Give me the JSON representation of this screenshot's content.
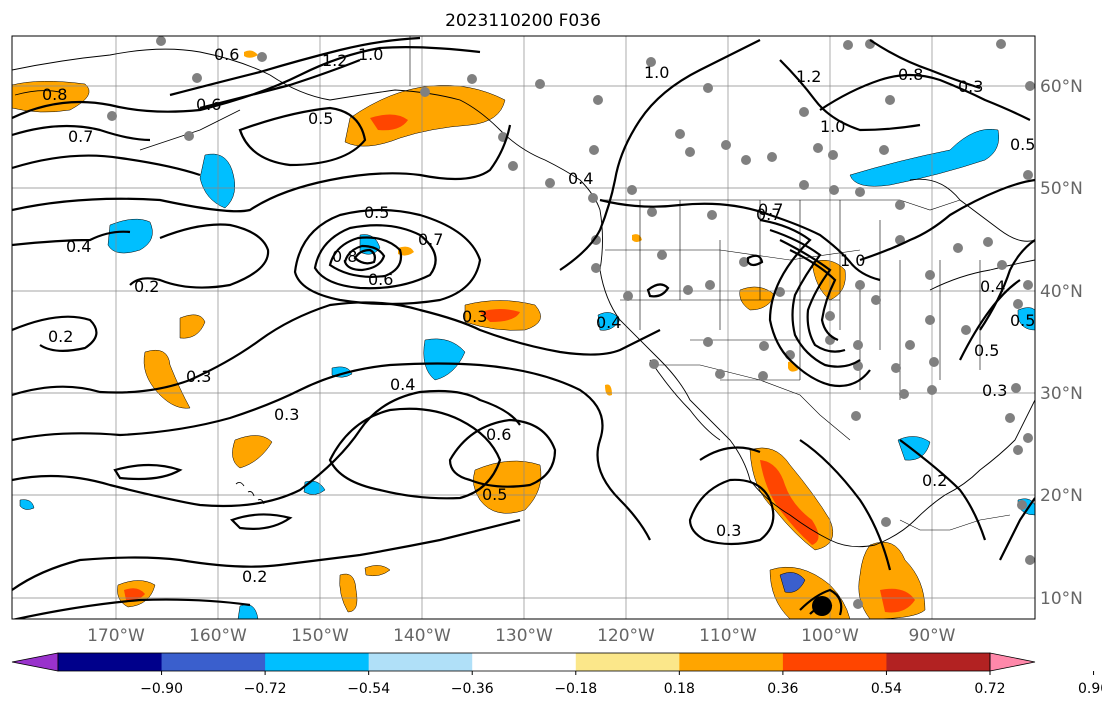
{
  "title": "2023110200 F036",
  "map": {
    "lon_labels": [
      "170°W",
      "160°W",
      "150°W",
      "140°W",
      "130°W",
      "120°W",
      "110°W",
      "100°W",
      "90°W"
    ],
    "lat_labels": [
      "60°N",
      "50°N",
      "40°N",
      "30°N",
      "20°N",
      "10°N"
    ]
  },
  "colorbar": {
    "tick_labels": [
      "−0.90",
      "−0.72",
      "−0.54",
      "−0.36",
      "−0.18",
      "0.18",
      "0.36",
      "0.54",
      "0.72",
      "0.90"
    ],
    "colors": [
      "#9932cc",
      "#00008b",
      "#3a5fcd",
      "#00bfff",
      "#b0e0f8",
      "#ffffff",
      "#fbe78a",
      "#ffa500",
      "#ff4500",
      "#b22222",
      "#ff88aa"
    ]
  },
  "contour_labels": [
    "0.8",
    "0.7",
    "0.6",
    "0.5",
    "0.4",
    "0.2",
    "0.3",
    "0.3",
    "0.2",
    "0.5",
    "0.8",
    "0.7",
    "0.6",
    "0.4",
    "0.3",
    "0.6",
    "0.5",
    "0.2",
    "0.4",
    "0.4",
    "0.7",
    "1.0",
    "1.2",
    "1.0",
    "0.8",
    "0.3",
    "0.5",
    "0.4",
    "0.5",
    "0.3",
    "1.2",
    "1.0",
    "0.6",
    "1.0",
    "0.2",
    "0.3",
    "0.7",
    "0.5"
  ]
}
